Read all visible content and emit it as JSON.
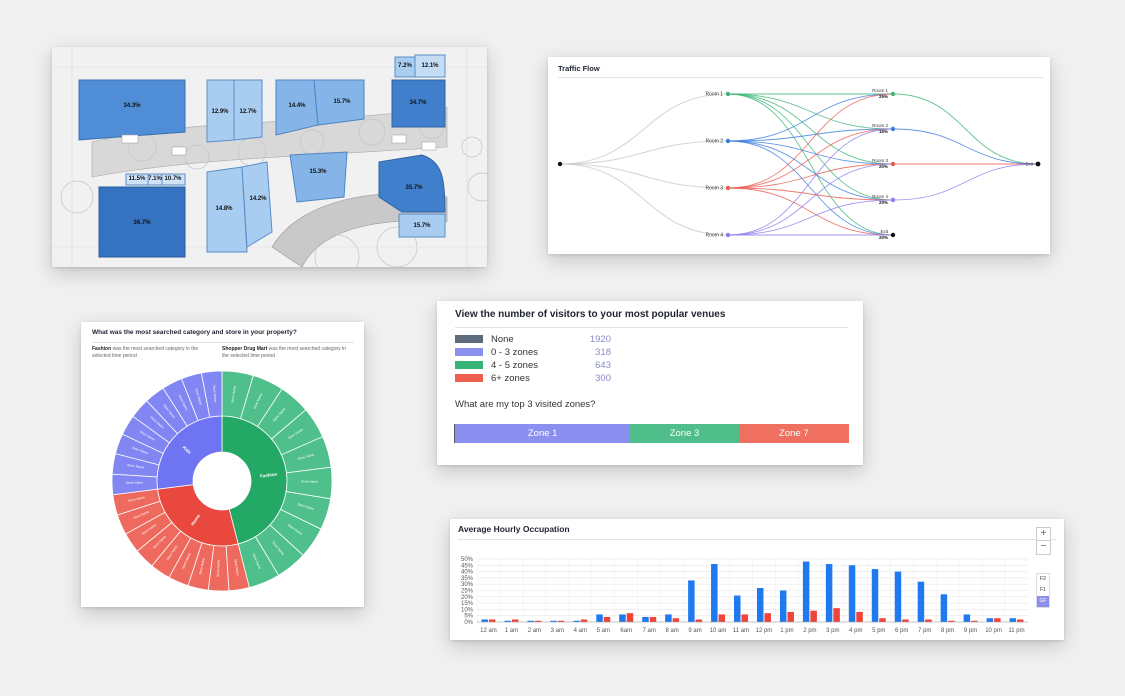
{
  "floorplan": {
    "zones": [
      "34.3%",
      "12.9%",
      "12.7%",
      "14.4%",
      "15.7%",
      "34.7%",
      "7.2%",
      "12.1%",
      "11.5%",
      "7.1%",
      "10.7%",
      "36.7%",
      "14.8%",
      "14.2%",
      "15.3%",
      "35.7%",
      "15.7%"
    ]
  },
  "traffic": {
    "title": "Traffic Flow",
    "left_nodes": [
      "Room 1",
      "Room 2",
      "Room 3",
      "Room 4"
    ],
    "right_nodes": [
      {
        "label": "Room 1",
        "pct": "25%"
      },
      {
        "label": "Room 2",
        "pct": "15%"
      },
      {
        "label": "Room 3",
        "pct": "20%"
      },
      {
        "label": "Room 4",
        "pct": "20%"
      },
      {
        "label": "Exit",
        "pct": "20%"
      }
    ],
    "exit_label": "Exit",
    "colors": {
      "room1": "#3cb878",
      "room2": "#3c7ce0",
      "room3": "#ea5a4e",
      "room4": "#8b7cf0",
      "gray": "#cccccc"
    }
  },
  "sunburst": {
    "question": "What was the most searched category and store in your property?",
    "insight1_bold": "Fashion",
    "insight1_text": "was the most searched category in the selected time period",
    "insight2_bold": "Shopper Drug Mart",
    "insight2_text": "was the most searched category in the selected time period",
    "inner": [
      {
        "label": "Fashion",
        "value": 46,
        "color": "#24a866"
      },
      {
        "label": "Home",
        "value": 27,
        "color": "#e8483e"
      },
      {
        "label": "Kids",
        "value": 27,
        "color": "#6e74f2"
      }
    ],
    "outer_labels": [
      "Store Name"
    ]
  },
  "visitors": {
    "title": "View the number of visitors to your most popular venues",
    "legend": [
      {
        "name": "None",
        "value": "1920",
        "color": "#5e6b7c"
      },
      {
        "name": "0 - 3 zones",
        "value": "318",
        "color": "#8b8ff0"
      },
      {
        "name": "4 - 5 zones",
        "value": "643",
        "color": "#37b579"
      },
      {
        "name": "6+ zones",
        "value": "300",
        "color": "#ef5f50"
      }
    ],
    "question": "What are my top 3 visited zones?",
    "bar": [
      {
        "label": "Zone 1",
        "share": 0.445,
        "color": "#8b8ff0"
      },
      {
        "label": "Zone 3",
        "share": 0.275,
        "color": "#4fbe8a"
      },
      {
        "label": "Zone 7",
        "share": 0.28,
        "color": "#ef6f60"
      }
    ]
  },
  "occupation": {
    "title": "Average Hourly Occupation",
    "zoom_in": "+",
    "zoom_out": "−",
    "floors": [
      "F2",
      "F1",
      "GF"
    ],
    "chart_data": {
      "type": "bar",
      "categories": [
        "12 am",
        "1 am",
        "2 am",
        "3 am",
        "4 am",
        "5 am",
        "6am",
        "7 am",
        "8 am",
        "9 am",
        "10 am",
        "11 am",
        "12 pm",
        "1 pm",
        "2 pm",
        "3 pm",
        "4 pm",
        "5 pm",
        "6 pm",
        "7 pm",
        "8 pm",
        "9 pm",
        "10 pm",
        "11 pm"
      ],
      "series": [
        {
          "color": "#1f7af0",
          "values": [
            2,
            1,
            1,
            1,
            1,
            6,
            6,
            4,
            6,
            33,
            46,
            21,
            27,
            25,
            48,
            46,
            45,
            42,
            40,
            32,
            22,
            6,
            3,
            3
          ]
        },
        {
          "color": "#f0443a",
          "values": [
            2,
            2,
            1,
            1,
            2,
            4,
            7,
            4,
            3,
            2,
            6,
            6,
            7,
            8,
            9,
            11,
            8,
            3,
            2,
            2,
            1,
            1,
            3,
            2
          ]
        }
      ],
      "yticks": [
        "0%",
        "5%",
        "10%",
        "15%",
        "20%",
        "25%",
        "30%",
        "35%",
        "40%",
        "45%",
        "50%"
      ],
      "ylim": [
        0,
        50
      ]
    }
  }
}
